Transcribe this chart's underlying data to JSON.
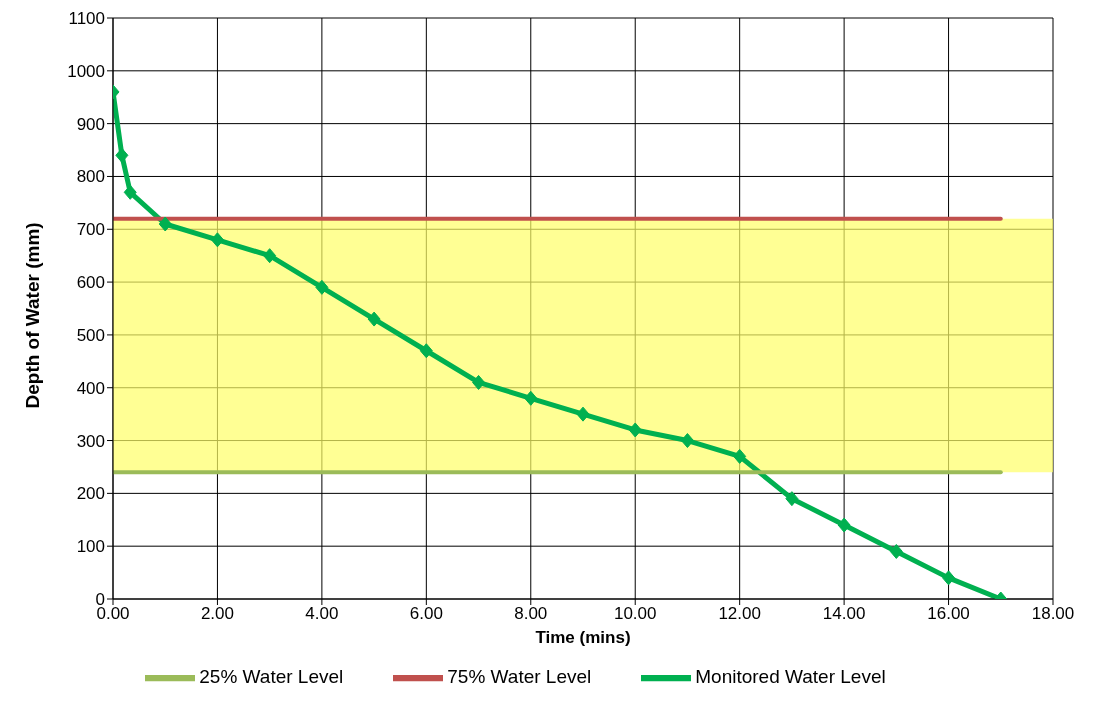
{
  "chart_data": {
    "type": "line",
    "xlabel": "Time (mins)",
    "ylabel": "Depth of Water (mm)",
    "xlim": [
      0,
      18
    ],
    "xticks": [
      {
        "value": 0,
        "label": "0.00"
      },
      {
        "value": 2,
        "label": "2.00"
      },
      {
        "value": 4,
        "label": "4.00"
      },
      {
        "value": 6,
        "label": "6.00"
      },
      {
        "value": 8,
        "label": "8.00"
      },
      {
        "value": 10,
        "label": "10.00"
      },
      {
        "value": 12,
        "label": "12.00"
      },
      {
        "value": 14,
        "label": "14.00"
      },
      {
        "value": 16,
        "label": "16.00"
      },
      {
        "value": 18,
        "label": "18.00"
      }
    ],
    "ylim": [
      0,
      1100
    ],
    "yticks": [
      0,
      100,
      200,
      300,
      400,
      500,
      600,
      700,
      800,
      900,
      1000,
      1100
    ],
    "grid": true,
    "legend": "bottom",
    "line_style": "solid",
    "bands": [
      {
        "axis": "y",
        "from": 240,
        "to": 720,
        "color": "#ffff66"
      }
    ],
    "series": [
      {
        "name": "Monitored Water Level",
        "color": "#00b050",
        "marker": "diamond",
        "x": [
          0,
          0.17,
          0.33,
          1,
          2,
          3,
          4,
          5,
          6,
          7,
          8,
          9,
          10,
          11,
          12,
          13,
          14,
          15,
          16,
          17
        ],
        "values": [
          960,
          840,
          770,
          710,
          680,
          650,
          590,
          530,
          470,
          410,
          380,
          350,
          320,
          300,
          270,
          190,
          140,
          90,
          40,
          0
        ]
      },
      {
        "name": "75% Water Level",
        "color": "#c0504d",
        "marker": "none",
        "x": [
          0,
          17
        ],
        "values": [
          720,
          720
        ]
      },
      {
        "name": "25% Water Level",
        "color": "#9bbb59",
        "marker": "none",
        "x": [
          0,
          17
        ],
        "values": [
          240,
          240
        ]
      }
    ]
  }
}
